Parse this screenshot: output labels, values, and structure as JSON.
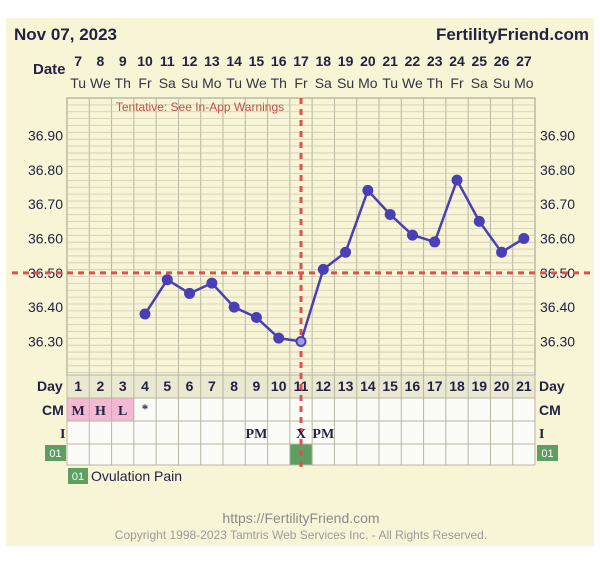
{
  "header": {
    "date": "Nov 07, 2023",
    "brand": "FertilityFriend.com",
    "date_row_label": "Date"
  },
  "dates": [
    "7",
    "8",
    "9",
    "10",
    "11",
    "12",
    "13",
    "14",
    "15",
    "16",
    "17",
    "18",
    "19",
    "20",
    "21",
    "22",
    "23",
    "24",
    "25",
    "26",
    "27"
  ],
  "weekdays": [
    "Tu",
    "We",
    "Th",
    "Fr",
    "Sa",
    "Su",
    "Mo",
    "Tu",
    "We",
    "Th",
    "Fr",
    "Sa",
    "Su",
    "Mo",
    "Tu",
    "We",
    "Th",
    "Fr",
    "Sa",
    "Su",
    "Mo"
  ],
  "warning": "Tentative: See In-App Warnings",
  "rows": {
    "day_label": "Day",
    "cm_label": "CM",
    "i_label": "I",
    "code_badge": "01"
  },
  "cycle_days": [
    "1",
    "2",
    "3",
    "4",
    "5",
    "6",
    "7",
    "8",
    "9",
    "10",
    "11",
    "12",
    "13",
    "14",
    "15",
    "16",
    "17",
    "18",
    "19",
    "20",
    "21"
  ],
  "cm_values": [
    "M",
    "H",
    "L",
    "*",
    "",
    "",
    "",
    "",
    "",
    "",
    "",
    "",
    "",
    "",
    "",
    "",
    "",
    "",
    "",
    "",
    ""
  ],
  "i_values": [
    "",
    "",
    "",
    "",
    "",
    "",
    "",
    "",
    "PM",
    "",
    "X",
    "PM",
    "",
    "",
    "",
    "",
    "",
    "",
    "",
    "",
    ""
  ],
  "legend": {
    "code": "01",
    "label": "Ovulation Pain"
  },
  "footer": {
    "url": "https://FertilityFriend.com",
    "copyright": "Copyright 1998-2023 Tamtris Web Services Inc. - All Rights Reserved."
  },
  "colors": {
    "background": "#f8f5d7",
    "line": "#4a3fb5",
    "coverline": "#d9534f",
    "cm_fill": "#f3b8d2",
    "code_green": "#5e9e62"
  },
  "chart_data": {
    "type": "line",
    "x": [
      "7",
      "8",
      "9",
      "10",
      "11",
      "12",
      "13",
      "14",
      "15",
      "16",
      "17",
      "18",
      "19",
      "20",
      "21",
      "22",
      "23",
      "24",
      "25",
      "26",
      "27"
    ],
    "series": [
      {
        "values": [
          null,
          null,
          null,
          36.38,
          36.48,
          36.44,
          36.47,
          36.4,
          36.37,
          36.31,
          36.3,
          36.51,
          36.56,
          36.74,
          36.67,
          36.61,
          36.59,
          36.77,
          36.65,
          36.56,
          36.6
        ]
      }
    ],
    "yticks": [
      "36.90",
      "36.80",
      "36.70",
      "36.60",
      "36.50",
      "36.40",
      "36.30"
    ],
    "ylim": [
      36.2,
      36.95
    ],
    "coverline": 36.5,
    "ovulation_day_index": 10,
    "grid": true
  }
}
